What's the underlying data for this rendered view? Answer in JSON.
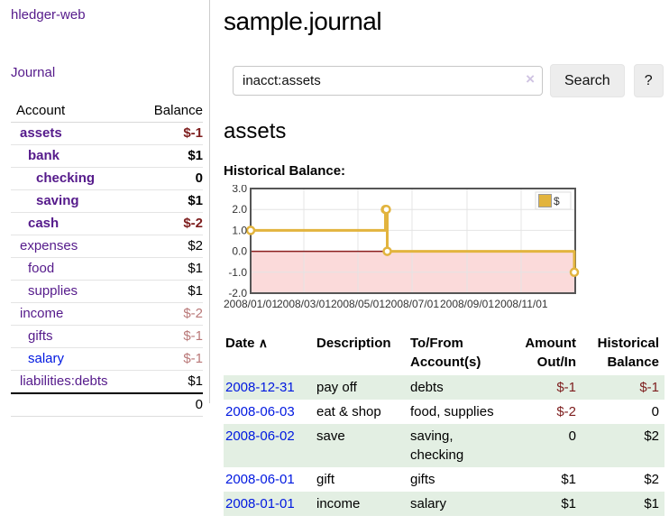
{
  "app": {
    "title": "hledger-web"
  },
  "sidebar": {
    "journal_label": "Journal",
    "table": {
      "account_header": "Account",
      "balance_header": "Balance",
      "rows": [
        {
          "name": "assets",
          "balance": "$-1"
        },
        {
          "name": "bank",
          "balance": "$1"
        },
        {
          "name": "checking",
          "balance": "0"
        },
        {
          "name": "saving",
          "balance": "$1"
        },
        {
          "name": "cash",
          "balance": "$-2"
        },
        {
          "name": "expenses",
          "balance": "$2"
        },
        {
          "name": "food",
          "balance": "$1"
        },
        {
          "name": "supplies",
          "balance": "$1"
        },
        {
          "name": "income",
          "balance": "$-2"
        },
        {
          "name": "gifts",
          "balance": "$-1"
        },
        {
          "name": "salary",
          "balance": "$-1"
        },
        {
          "name": "liabilities:debts",
          "balance": "$1"
        }
      ],
      "total": "0"
    }
  },
  "header": {
    "title": "sample.journal"
  },
  "search": {
    "value": "inacct:assets",
    "clear_icon": "×",
    "button_label": "Search",
    "help_label": "?"
  },
  "account_page": {
    "title": "assets",
    "chart_label": "Historical Balance:"
  },
  "chart_data": {
    "type": "line",
    "title": "Historical Balance",
    "step": true,
    "series": [
      {
        "name": "$",
        "color": "#e2b43e",
        "points": [
          {
            "date": "2008-01-01",
            "value": 1
          },
          {
            "date": "2008-06-01",
            "value": 2
          },
          {
            "date": "2008-06-02",
            "value": 2
          },
          {
            "date": "2008-06-03",
            "value": 0
          },
          {
            "date": "2008-12-31",
            "value": -1
          }
        ]
      }
    ],
    "x_range": [
      "2008-01-01",
      "2009-01-01"
    ],
    "ylim": [
      -2,
      3
    ],
    "y_ticks": [
      3,
      2,
      1,
      0,
      -1,
      -2
    ],
    "y_tick_labels": [
      "3.0",
      "2.0",
      "1.0",
      "0.0",
      "-1.0",
      "-2.0"
    ],
    "x_tick_days": [
      0,
      60,
      121,
      182,
      244,
      305
    ],
    "x_tick_labels": [
      "2008/01/01",
      "2008/03/01",
      "2008/05/01",
      "2008/07/01",
      "2008/09/01",
      "2008/11/01"
    ],
    "grid": true,
    "negative_region_color": "#fbdada",
    "zero_line_color": "#8b1f1f",
    "legend": {
      "label": "$",
      "swatch_color": "#e2b43e",
      "position": "top-right"
    }
  },
  "register": {
    "sort_indicator": "∧",
    "columns": {
      "date": "Date",
      "description": "Description",
      "tofrom1": "To/From",
      "tofrom2": "Account(s)",
      "amount1": "Amount",
      "amount2": "Out/In",
      "balance1": "Historical",
      "balance2": "Balance"
    },
    "rows": [
      {
        "date": "2008-12-31",
        "description": "pay off",
        "accounts": "debts",
        "amount": "$-1",
        "balance": "$-1"
      },
      {
        "date": "2008-06-03",
        "description": "eat & shop",
        "accounts": "food, supplies",
        "amount": "$-2",
        "balance": "0"
      },
      {
        "date": "2008-06-02",
        "description": "save",
        "accounts": "saving, checking",
        "amount": "0",
        "balance": "$2"
      },
      {
        "date": "2008-06-01",
        "description": "gift",
        "accounts": "gifts",
        "amount": "$1",
        "balance": "$2"
      },
      {
        "date": "2008-01-01",
        "description": "income",
        "accounts": "salary",
        "amount": "$1",
        "balance": "$1"
      }
    ]
  },
  "colors": {
    "visited_link_purple": "#551a8b",
    "link_blue": "#0018e0",
    "negative_strong": "#7d1d1d",
    "negative_soft": "#b97878",
    "row_stripe_green": "#e3efe3",
    "chart_line_gold": "#e2b43e",
    "chart_negative_pink": "#fbdada",
    "chart_zero_line": "#8b1f1f"
  }
}
